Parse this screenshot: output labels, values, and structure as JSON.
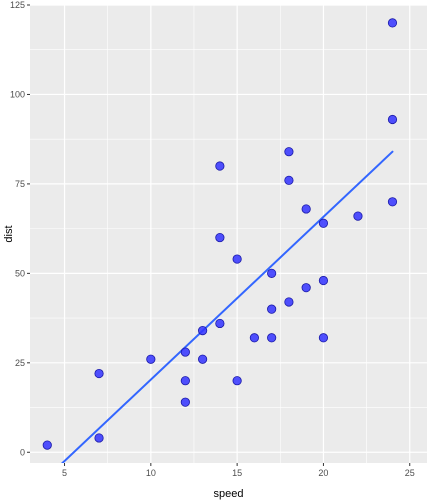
{
  "chart_data": {
    "type": "scatter",
    "xlabel": "speed",
    "ylabel": "dist",
    "xlim": [
      3,
      26
    ],
    "ylim": [
      -3,
      125
    ],
    "x_ticks": [
      5,
      10,
      15,
      20,
      25
    ],
    "y_ticks": [
      0,
      25,
      50,
      75,
      100,
      125
    ],
    "grid": true,
    "point_color": "#3333ff",
    "line_color": "#3366ff",
    "panel_background": "#ebebeb",
    "grid_color": "#ffffff",
    "points": [
      {
        "x": 4,
        "y": 2
      },
      {
        "x": 7,
        "y": 4
      },
      {
        "x": 7,
        "y": 22
      },
      {
        "x": 10,
        "y": 26
      },
      {
        "x": 12,
        "y": 14
      },
      {
        "x": 12,
        "y": 20
      },
      {
        "x": 12,
        "y": 28
      },
      {
        "x": 13,
        "y": 26
      },
      {
        "x": 13,
        "y": 34
      },
      {
        "x": 14,
        "y": 36
      },
      {
        "x": 14,
        "y": 60
      },
      {
        "x": 14,
        "y": 80
      },
      {
        "x": 15,
        "y": 20
      },
      {
        "x": 15,
        "y": 54
      },
      {
        "x": 16,
        "y": 32
      },
      {
        "x": 17,
        "y": 32
      },
      {
        "x": 17,
        "y": 40
      },
      {
        "x": 17,
        "y": 50
      },
      {
        "x": 18,
        "y": 42
      },
      {
        "x": 18,
        "y": 76
      },
      {
        "x": 18,
        "y": 84
      },
      {
        "x": 19,
        "y": 46
      },
      {
        "x": 19,
        "y": 68
      },
      {
        "x": 20,
        "y": 32
      },
      {
        "x": 20,
        "y": 48
      },
      {
        "x": 20,
        "y": 64
      },
      {
        "x": 22,
        "y": 66
      },
      {
        "x": 24,
        "y": 70
      },
      {
        "x": 24,
        "y": 93
      },
      {
        "x": 24,
        "y": 120
      }
    ],
    "fit_line": {
      "x": [
        4,
        24
      ],
      "y": [
        -7,
        84
      ]
    }
  }
}
